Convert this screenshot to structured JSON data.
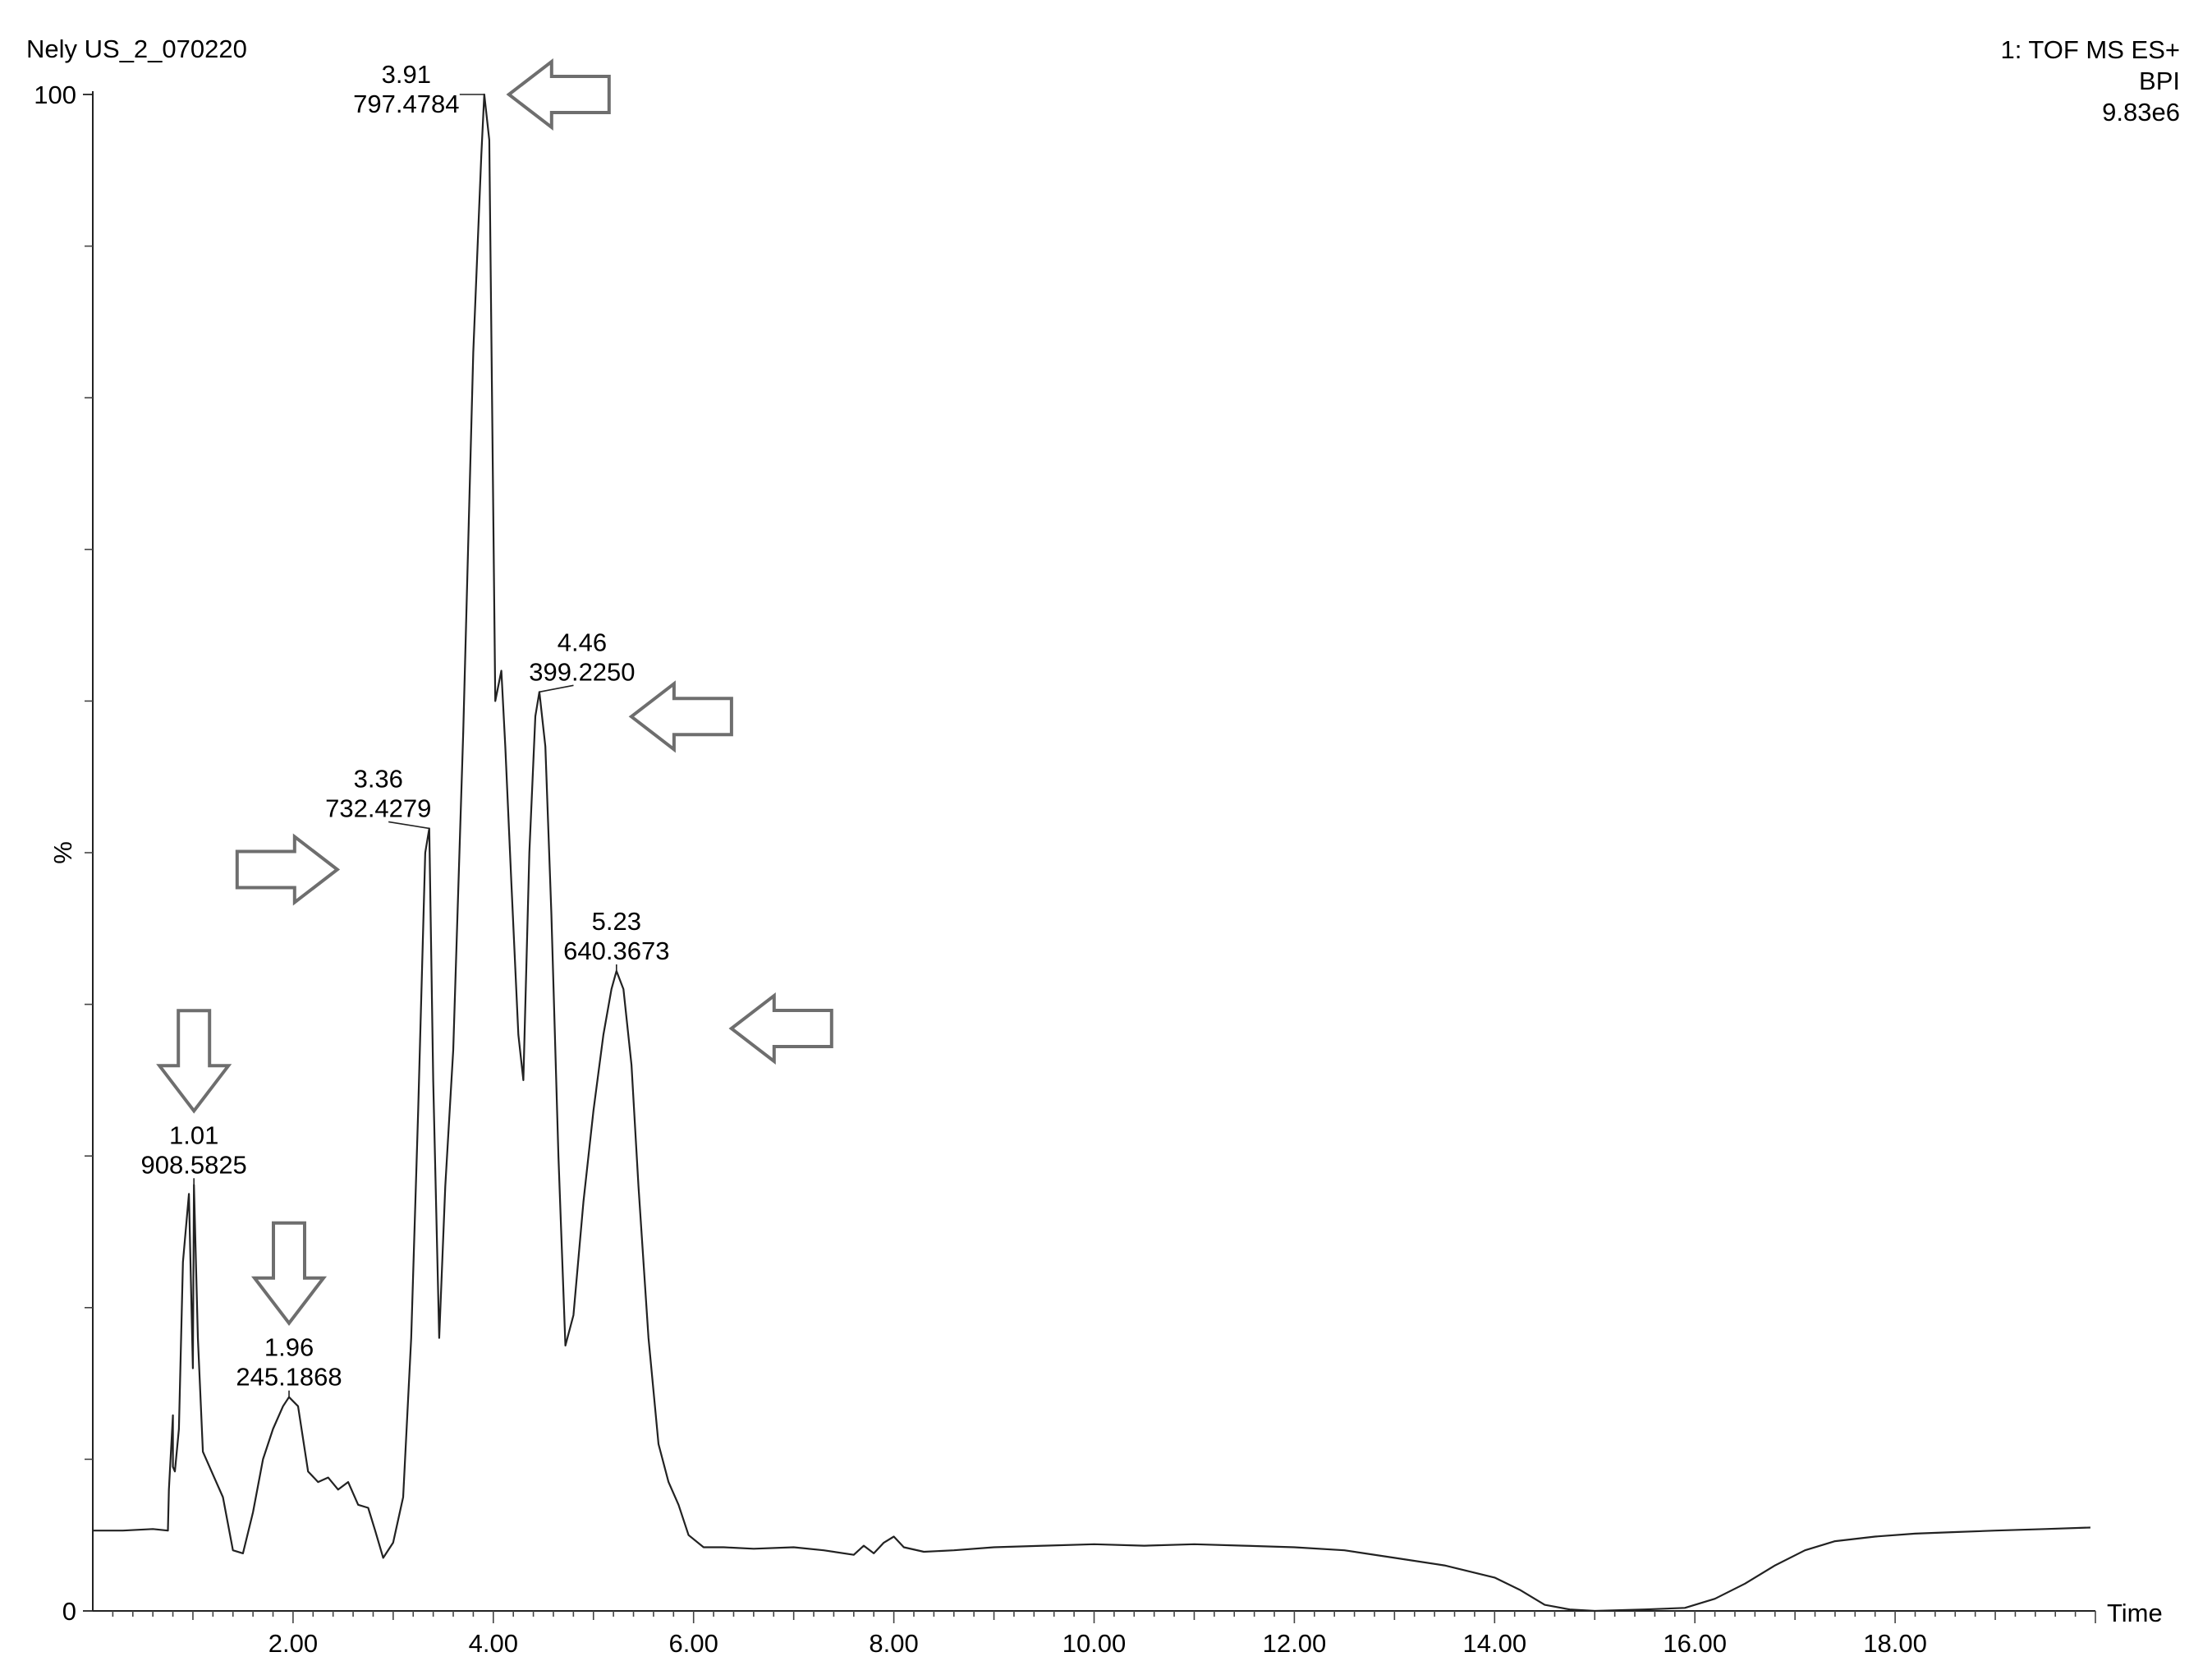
{
  "header": {
    "sample": "Nely US_2_070220",
    "function": "1: TOF MS ES+",
    "trace": "BPI",
    "intensity": "9.83e6"
  },
  "chart_data": {
    "type": "line",
    "title": "",
    "xlabel": "Time",
    "ylabel": "%",
    "xlim": [
      0,
      20
    ],
    "ylim": [
      0,
      100
    ],
    "x_ticks": [
      "2.00",
      "4.00",
      "6.00",
      "8.00",
      "10.00",
      "12.00",
      "14.00",
      "16.00",
      "18.00"
    ],
    "x_tick_values": [
      2,
      4,
      6,
      8,
      10,
      12,
      14,
      16,
      18
    ],
    "y_ticks": [
      "0",
      "100"
    ],
    "y_tick_values": [
      0,
      100
    ],
    "y_minor_ticks": [
      10,
      20,
      30,
      40,
      50,
      60,
      70,
      80,
      90
    ],
    "y_mid_label_value": 50,
    "grid": false,
    "legend": "none",
    "line_color": "#222222",
    "arrow_color": "#6e6e6e",
    "series": [
      {
        "x": [
          0.0,
          0.3,
          0.6,
          0.75,
          0.76,
          0.8,
          0.8,
          0.82,
          0.86,
          0.9,
          0.96,
          1.0,
          1.01,
          1.05,
          1.1,
          1.2,
          1.3,
          1.4,
          1.5,
          1.6,
          1.7,
          1.8,
          1.9,
          1.96,
          2.05,
          2.15,
          2.25,
          2.35,
          2.45,
          2.55,
          2.65,
          2.75,
          2.82,
          2.9,
          3.0,
          3.1,
          3.18,
          3.25,
          3.32,
          3.36,
          3.4,
          3.46,
          3.52,
          3.6,
          3.7,
          3.8,
          3.88,
          3.91,
          3.96,
          4.02,
          4.08,
          4.12,
          4.18,
          4.25,
          4.3,
          4.36,
          4.42,
          4.46,
          4.52,
          4.58,
          4.65,
          4.72,
          4.8,
          4.9,
          5.0,
          5.1,
          5.18,
          5.23,
          5.3,
          5.38,
          5.45,
          5.55,
          5.65,
          5.75,
          5.85,
          5.95,
          6.1,
          6.3,
          6.6,
          7.0,
          7.3,
          7.6,
          7.7,
          7.8,
          7.9,
          8.0,
          8.1,
          8.3,
          8.6,
          9.0,
          9.5,
          10.0,
          10.5,
          11.0,
          11.5,
          12.0,
          12.5,
          13.0,
          13.5,
          14.0,
          14.25,
          14.5,
          14.75,
          15.0,
          15.5,
          15.9,
          16.2,
          16.5,
          16.8,
          17.1,
          17.4,
          17.8,
          18.2,
          18.6,
          19.0,
          19.5,
          19.95
        ],
        "y": [
          5.3,
          5.3,
          5.4,
          5.3,
          8.0,
          12.9,
          9.5,
          9.2,
          12.0,
          23.0,
          27.5,
          16.0,
          28.1,
          18.0,
          10.5,
          9.0,
          7.5,
          4.0,
          3.8,
          6.5,
          10.0,
          12.0,
          13.5,
          14.1,
          13.5,
          9.2,
          8.5,
          8.8,
          8.0,
          8.5,
          7.0,
          6.8,
          5.3,
          3.5,
          4.5,
          7.5,
          18.0,
          33.0,
          50.0,
          51.6,
          35.0,
          18.0,
          28.0,
          37.0,
          58.0,
          83.0,
          96.0,
          100.0,
          97.0,
          60.0,
          62.0,
          57.0,
          48.0,
          38.0,
          35.0,
          50.0,
          59.0,
          60.6,
          57.0,
          46.0,
          30.0,
          17.5,
          19.5,
          27.0,
          33.0,
          38.0,
          41.0,
          42.2,
          41.0,
          36.0,
          28.0,
          18.0,
          11.0,
          8.5,
          7.0,
          5.0,
          4.2,
          4.2,
          4.1,
          4.2,
          4.0,
          3.7,
          4.3,
          3.8,
          4.5,
          4.9,
          4.2,
          3.9,
          4.0,
          4.2,
          4.3,
          4.4,
          4.3,
          4.4,
          4.3,
          4.2,
          4.0,
          3.5,
          3.0,
          2.2,
          1.4,
          0.4,
          0.1,
          0.0,
          0.1,
          0.2,
          0.8,
          1.8,
          3.0,
          4.0,
          4.6,
          4.9,
          5.1,
          5.2,
          5.3,
          5.4,
          5.5
        ]
      }
    ],
    "peak_labels": [
      {
        "time": "1.01",
        "mz": "908.5825",
        "x": 1.01,
        "y": 28.1,
        "arrow": "down"
      },
      {
        "time": "1.96",
        "mz": "245.1868",
        "x": 1.96,
        "y": 14.1,
        "arrow": "down"
      },
      {
        "time": "3.36",
        "mz": "732.4279",
        "x": 3.36,
        "y": 51.6,
        "arrow": "right"
      },
      {
        "time": "3.91",
        "mz": "797.4784",
        "x": 3.91,
        "y": 100.0,
        "arrow": "left"
      },
      {
        "time": "4.46",
        "mz": "399.2250",
        "x": 4.46,
        "y": 60.6,
        "arrow": "left"
      },
      {
        "time": "5.23",
        "mz": "640.3673",
        "x": 5.23,
        "y": 42.2,
        "arrow": "left"
      }
    ]
  }
}
